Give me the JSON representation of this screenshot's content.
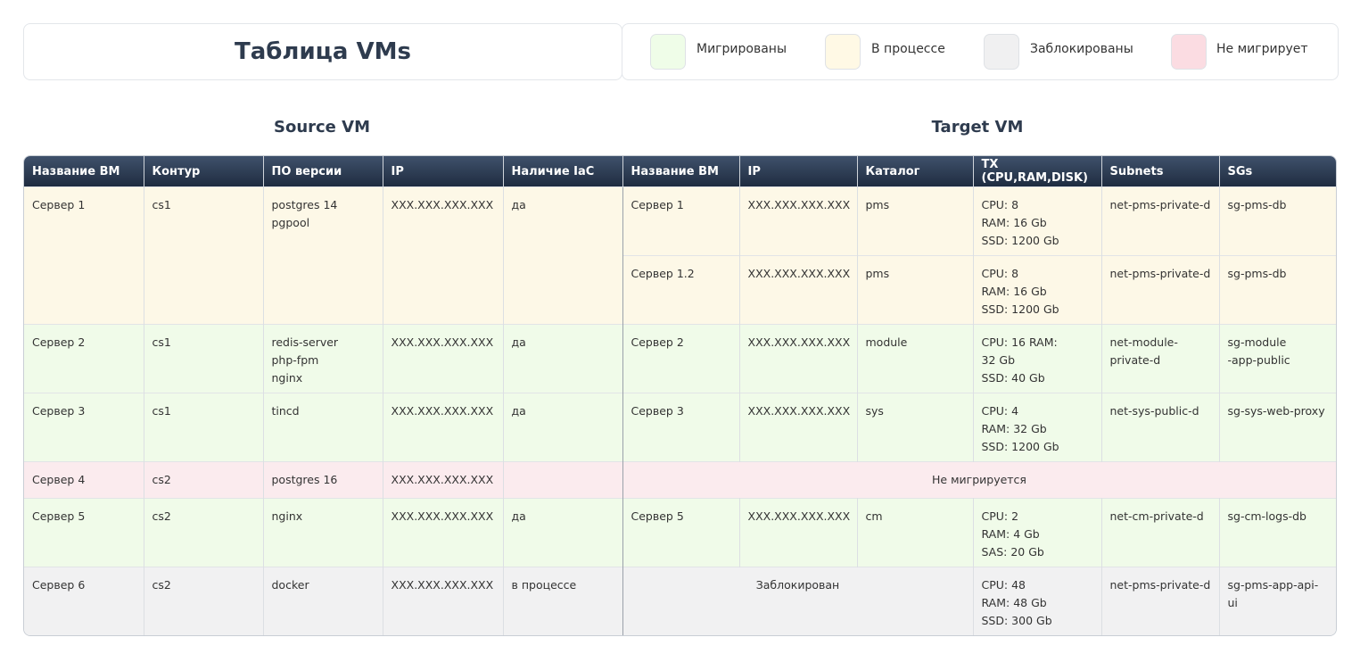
{
  "header": {
    "title": "Таблица VMs"
  },
  "legend": [
    "Мигрированы",
    "В процессе",
    "Заблокированы",
    "Не мигрирует"
  ],
  "sections": [
    "Source VM",
    "Target VM"
  ],
  "table": {
    "columns": [
      "Название ВМ",
      "Контур",
      "ПО версии",
      "IP",
      "Наличие IaC",
      "Название ВМ",
      "IP",
      "Каталог",
      "TX (CPU,RAM,DISK)",
      "Subnets",
      "SGs"
    ],
    "rows": [
      {
        "source": [
          "Сервер 1",
          "cs1",
          "postgres 14\npgpool",
          "XXX.XXX.XXX.XXX",
          "да"
        ],
        "targets": [
          [
            "Сервер 1",
            "XXX.XXX.XXX.XXX",
            "pms",
            "CPU: 8\nRAM: 16 Gb\nSSD: 1200 Gb",
            "net-pms-private-d",
            "sg-pms-db"
          ],
          [
            "Сервер 1.2",
            "XXX.XXX.XXX.XXX",
            "pms",
            "CPU: 8\nRAM: 16 Gb\nSSD: 1200 Gb",
            "net-pms-private-d",
            "sg-pms-db"
          ]
        ]
      },
      {
        "source": [
          "Сервер 2",
          "cs1",
          "redis-server\nphp-fpm\nnginx",
          "XXX.XXX.XXX.XXX",
          "да"
        ],
        "targets": [
          [
            "Сервер 2",
            "XXX.XXX.XXX.XXX",
            "module",
            "CPU: 16 RAM:\n32 Gb\nSSD: 40 Gb",
            "net-module-\nprivate-d",
            "sg-module\n-app-public"
          ]
        ]
      },
      {
        "source": [
          "Сервер 3",
          "cs1",
          "tincd",
          "XXX.XXX.XXX.XXX",
          "да"
        ],
        "targets": [
          [
            "Сервер 3",
            "XXX.XXX.XXX.XXX",
            "sys",
            "CPU: 4\nRAM: 32 Gb\nSSD: 1200 Gb",
            "net-sys-public-d",
            "sg-sys-web-proxy"
          ]
        ]
      },
      {
        "source": [
          "Сервер 4",
          "cs2",
          "postgres 16",
          "XXX.XXX.XXX.XXX"
        ],
        "note": "Не мигрируется"
      },
      {
        "source": [
          "Сервер 5",
          "cs2",
          "nginx",
          "XXX.XXX.XXX.XXX",
          "да"
        ],
        "targets": [
          [
            "Сервер 5",
            "XXX.XXX.XXX.XXX",
            "cm",
            "CPU: 2\nRAM: 4 Gb\nSAS: 20 Gb",
            "net-cm-private-d",
            "sg-cm-logs-db"
          ]
        ]
      },
      {
        "source": [
          "Сервер 6",
          "cs2",
          "docker",
          "XXX.XXX.XXX.XXX",
          "в процессе"
        ],
        "note": "Заблокирован",
        "cells": [
          "CPU: 48\nRAM: 48 Gb\nSSD: 300 Gb",
          "net-pms-private-d",
          "sg-pms-app-api-ui"
        ]
      }
    ]
  }
}
